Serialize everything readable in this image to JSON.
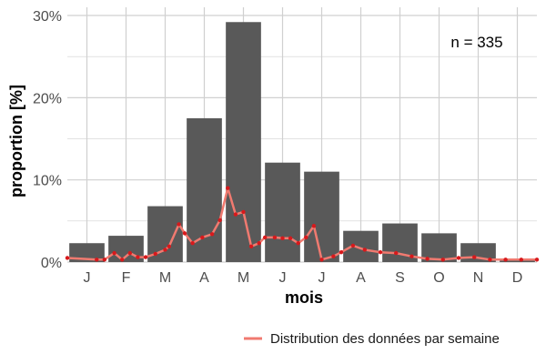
{
  "chart_data": {
    "type": "bar",
    "xlabel": "mois",
    "ylabel": "proportion [%]",
    "ylim": [
      0,
      31
    ],
    "yticks": [
      0,
      10,
      20,
      30
    ],
    "ytick_labels": [
      "0%",
      "10%",
      "20%",
      "30%"
    ],
    "categories": [
      "J",
      "F",
      "M",
      "A",
      "M",
      "J",
      "J",
      "A",
      "S",
      "O",
      "N",
      "D"
    ],
    "values": [
      2.3,
      3.2,
      6.8,
      17.5,
      29.2,
      12.1,
      11.0,
      3.8,
      4.7,
      3.5,
      2.3,
      0.3
    ],
    "annotation": "n = 335",
    "grid": true,
    "legend_position": "bottom-right",
    "bar_color": "#595959",
    "weekly_series": {
      "name": "Distribution des données par semaine",
      "color": "#f07a70",
      "point_color": "#d7191c",
      "x_months": [
        0.0,
        0.75,
        0.95,
        1.2,
        1.4,
        1.6,
        1.8,
        2.0,
        2.25,
        2.5,
        2.6,
        2.85,
        3.0,
        3.2,
        3.45,
        3.7,
        3.9,
        4.1,
        4.3,
        4.5,
        4.7,
        4.9,
        5.05,
        5.3,
        5.5,
        5.7,
        5.9,
        6.1,
        6.3,
        6.5,
        6.8,
        7.0,
        7.3,
        7.6,
        8.0,
        8.4,
        8.8,
        9.2,
        9.6,
        10.0,
        10.4,
        10.8,
        11.2,
        11.6,
        12.0
      ],
      "y": [
        0.5,
        0.3,
        0.3,
        1.1,
        0.3,
        1.1,
        0.6,
        0.6,
        1.0,
        1.5,
        1.9,
        4.6,
        3.5,
        2.3,
        3.0,
        3.4,
        5.1,
        9.0,
        5.8,
        6.1,
        1.9,
        2.3,
        3.0,
        3.0,
        2.9,
        2.9,
        2.3,
        3.0,
        4.4,
        0.3,
        0.7,
        1.2,
        2.0,
        1.5,
        1.2,
        1.1,
        0.7,
        0.4,
        0.3,
        0.5,
        0.6,
        0.3,
        0.3,
        0.3,
        0.3
      ]
    }
  }
}
